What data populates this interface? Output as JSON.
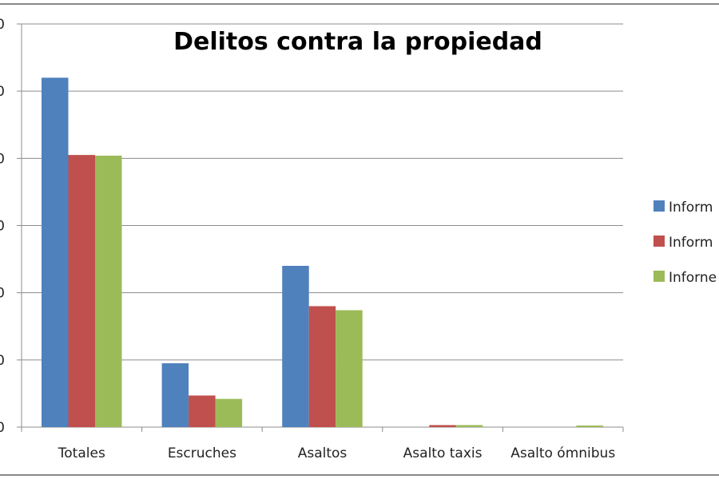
{
  "chart_data": {
    "type": "bar",
    "title": "Delitos contra la propiedad",
    "categories": [
      "Totales",
      "Escruches",
      "Asaltos",
      "Asalto taxis",
      "Asalto ómnibus"
    ],
    "series": [
      {
        "name": "Inform",
        "color": "#4f81bd",
        "values": [
          5.2,
          0.95,
          2.4,
          0,
          0
        ]
      },
      {
        "name": "Inform",
        "color": "#c0504d",
        "values": [
          4.05,
          0.47,
          1.8,
          0.03,
          0
        ]
      },
      {
        "name": "Inforne",
        "color": "#9bbb59",
        "values": [
          4.04,
          0.42,
          1.74,
          0.03,
          0.02
        ]
      }
    ],
    "ylim": [
      0,
      6
    ],
    "ytick_labels": [
      "0",
      "0",
      "0",
      "0",
      "0",
      "0",
      "0"
    ],
    "grid": true,
    "legend": "right",
    "xlabel": "",
    "ylabel": ""
  }
}
